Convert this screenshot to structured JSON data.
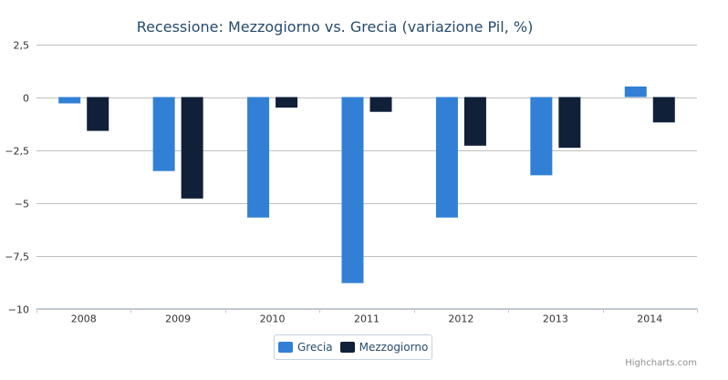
{
  "colors": {
    "grecia": "#3180d6",
    "mezzogiorno": "#0f2038",
    "grid": "#c0c0c0",
    "axis": "#c0d0e0"
  },
  "chart_data": {
    "type": "bar",
    "title": "Recessione: Mezzogiorno vs. Grecia (variazione Pil, %)",
    "categories": [
      "2008",
      "2009",
      "2010",
      "2011",
      "2012",
      "2013",
      "2014"
    ],
    "series": [
      {
        "name": "Grecia",
        "values": [
          -0.3,
          -3.5,
          -5.7,
          -8.8,
          -5.7,
          -3.7,
          0.5
        ]
      },
      {
        "name": "Mezzogiorno",
        "values": [
          -1.6,
          -4.8,
          -0.5,
          -0.7,
          -2.3,
          -2.4,
          -1.2
        ]
      }
    ],
    "ylim": [
      -10,
      2.5
    ],
    "yticks": [
      2.5,
      0,
      -2.5,
      -5,
      -7.5,
      -10
    ],
    "ytick_labels": [
      "2,5",
      "0",
      "−2,5",
      "−5",
      "−7,5",
      "−10"
    ],
    "grid": true,
    "legend": "bottom-center",
    "credits": "Highcharts.com"
  }
}
